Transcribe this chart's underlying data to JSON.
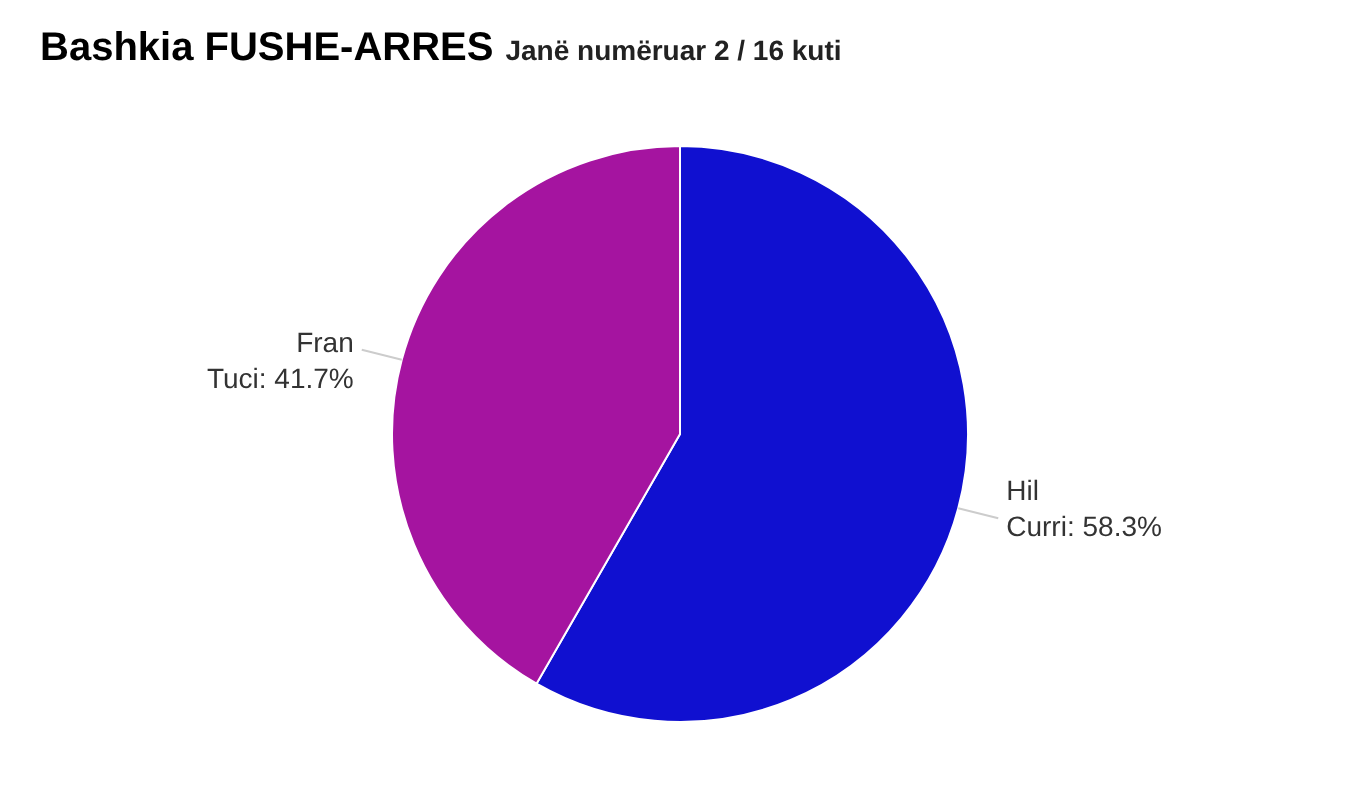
{
  "chart_data": {
    "type": "pie",
    "title": "Bashkia FUSHE-ARRES",
    "subtitle": "Janë numëruar 2 / 16 kuti",
    "categories": [
      "Hil Curri",
      "Fran Tuci"
    ],
    "values": [
      58.3,
      41.7
    ],
    "value_labels": [
      ": 58.3%",
      ": 41.7%"
    ],
    "colors": [
      "#1010d0",
      "#a514a0"
    ]
  }
}
